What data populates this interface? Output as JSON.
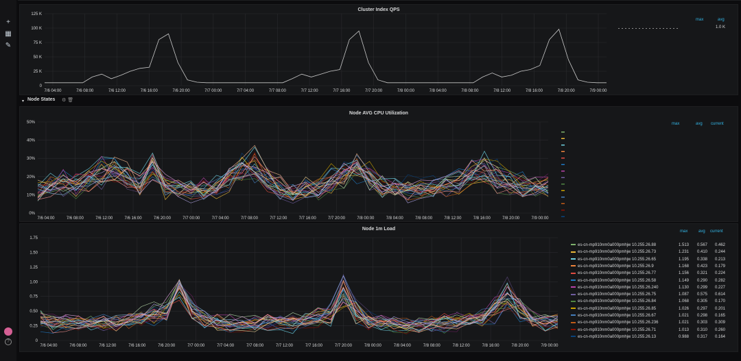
{
  "colors": {
    "background": "#0c0c0e",
    "panel": "#161719",
    "grid": "#2a2b2e",
    "axis_text": "#d8d9da",
    "legend_header": "#33b5e5",
    "qps_line": "#c8c8c8",
    "series_palette": [
      "#7eb26d",
      "#eab839",
      "#6ed0e0",
      "#ef843c",
      "#e24d42",
      "#1f78c1",
      "#ba43a9",
      "#705da0",
      "#508642",
      "#cca300",
      "#447ebc",
      "#c15c17",
      "#890f02",
      "#0a437c",
      "#6d1f62",
      "#584477",
      "#b7dbab",
      "#f4d598",
      "#70dbed",
      "#f9ba8f",
      "#f29191",
      "#82b5d8",
      "#e5a8e2",
      "#aea2e0"
    ]
  },
  "sidebar": {
    "icons": [
      "plus-icon",
      "dashboards-icon",
      "explore-icon",
      "user-avatar-icon",
      "help-icon"
    ],
    "help_label": "?"
  },
  "row": {
    "title": "Node States",
    "chevron": "▾",
    "icons": "⚙ 🗑"
  },
  "panels": {
    "qps": {
      "title": "Cluster Index QPS",
      "legend_headers": [
        "max",
        "avg"
      ],
      "legend_value": "1.0 K"
    },
    "cpu": {
      "title": "Node AVG CPU Utilization",
      "legend_headers": [
        "max",
        "avg",
        "current"
      ]
    },
    "load": {
      "title": "Node 1m Load",
      "legend_headers": [
        "max",
        "avg",
        "current"
      ],
      "legend_rows": [
        {
          "name": "es-cn-mp910nm0a000pmhjw 10.255.26.88",
          "max": "1.513",
          "avg": "0.567",
          "current": "0.462",
          "color": "#7eb26d"
        },
        {
          "name": "es-cn-mp910nm0a000pmhjw 10.255.26.73",
          "max": "1.231",
          "avg": "0.410",
          "current": "0.244",
          "color": "#eab839"
        },
        {
          "name": "es-cn-mp910nm0a000pmhjw 10.255.26.65",
          "max": "1.195",
          "avg": "0.338",
          "current": "0.213",
          "color": "#6ed0e0"
        },
        {
          "name": "es-cn-mp910nm0a000pmhjw 10.255.26.9",
          "max": "1.168",
          "avg": "0.423",
          "current": "0.179",
          "color": "#ef843c"
        },
        {
          "name": "es-cn-mp910nm0a000pmhjw 10.255.26.77",
          "max": "1.156",
          "avg": "0.321",
          "current": "0.224",
          "color": "#e24d42"
        },
        {
          "name": "es-cn-mp910nm0a000pmhjw 10.255.26.58",
          "max": "1.149",
          "avg": "0.290",
          "current": "0.282",
          "color": "#1f78c1"
        },
        {
          "name": "es-cn-mp910nm0a000pmhjw 10.255.26.240",
          "max": "1.130",
          "avg": "0.299",
          "current": "0.227",
          "color": "#ba43a9"
        },
        {
          "name": "es-cn-mp910nm0a000pmhjw 10.255.26.75",
          "max": "1.087",
          "avg": "0.575",
          "current": "0.614",
          "color": "#705da0"
        },
        {
          "name": "es-cn-mp910nm0a000pmhjw 10.255.26.84",
          "max": "1.068",
          "avg": "0.305",
          "current": "0.170",
          "color": "#508642"
        },
        {
          "name": "es-cn-mp910nm0a000pmhjw 10.255.26.85",
          "max": "1.026",
          "avg": "0.297",
          "current": "0.201",
          "color": "#cca300"
        },
        {
          "name": "es-cn-mp910nm0a000pmhjw 10.255.26.67",
          "max": "1.021",
          "avg": "0.298",
          "current": "0.165",
          "color": "#447ebc"
        },
        {
          "name": "es-cn-mp910nm0a000pmhjw 10.255.26.236",
          "max": "1.021",
          "avg": "0.303",
          "current": "0.309",
          "color": "#c15c17"
        },
        {
          "name": "es-cn-mp910nm0a000pmhjw 10.255.26.71",
          "max": "1.013",
          "avg": "0.310",
          "current": "0.260",
          "color": "#890f02"
        },
        {
          "name": "es-cn-mp910nm0a000pmhjw 10.255.26.13",
          "max": "0.988",
          "avg": "0.317",
          "current": "0.164",
          "color": "#0a437c"
        }
      ]
    }
  },
  "chart_data": [
    {
      "type": "line",
      "title": "Cluster Index QPS",
      "xlabel": "",
      "ylabel": "",
      "x_ticks": [
        "7/6 04:00",
        "7/6 08:00",
        "7/6 12:00",
        "7/6 16:00",
        "7/6 20:00",
        "7/7 00:00",
        "7/7 04:00",
        "7/7 08:00",
        "7/7 12:00",
        "7/7 16:00",
        "7/7 20:00",
        "7/8 00:00",
        "7/8 04:00",
        "7/8 08:00",
        "7/8 12:00",
        "7/8 16:00",
        "7/8 20:00",
        "7/9 00:00"
      ],
      "y_ticks": [
        "0",
        "25 K",
        "50 K",
        "75 K",
        "100 K",
        "125 K"
      ],
      "ylim": [
        0,
        125000
      ],
      "grid": true,
      "legend": "right",
      "series": [
        {
          "values": [
            5000,
            5000,
            5000,
            5000,
            5000,
            15000,
            20000,
            12000,
            18000,
            25000,
            30000,
            32000,
            80000,
            90000,
            40000,
            10000,
            6000,
            5000,
            5000,
            5000,
            5000,
            5000,
            5000,
            5000,
            5000,
            5000,
            12000,
            20000,
            15000,
            20000,
            25000,
            28000,
            80000,
            95000,
            40000,
            10000,
            5000,
            5000,
            5000,
            5000,
            5000,
            5000,
            5000,
            5000,
            5000,
            5000,
            15000,
            22000,
            15000,
            18000,
            25000,
            28000,
            35000,
            80000,
            98000,
            45000,
            10000,
            6000,
            5000,
            5000
          ]
        }
      ]
    },
    {
      "type": "line",
      "title": "Node AVG CPU Utilization",
      "xlabel": "",
      "ylabel": "",
      "x_ticks": [
        "7/6 04:00",
        "7/6 08:00",
        "7/6 12:00",
        "7/6 16:00",
        "7/6 20:00",
        "7/7 00:00",
        "7/7 04:00",
        "7/7 08:00",
        "7/7 12:00",
        "7/7 16:00",
        "7/7 20:00",
        "7/8 00:00",
        "7/8 04:00",
        "7/8 08:00",
        "7/8 12:00",
        "7/8 16:00",
        "7/8 20:00",
        "7/9 00:00"
      ],
      "y_ticks": [
        "0%",
        "10%",
        "20%",
        "30%",
        "40%",
        "50%"
      ],
      "ylim": [
        0,
        50
      ],
      "grid": true,
      "legend": "right",
      "series_count": 24,
      "base_profile": [
        12,
        14,
        16,
        15,
        18,
        22,
        24,
        20,
        16,
        25,
        14,
        13,
        12,
        13,
        14,
        20,
        24,
        26,
        18,
        14,
        12,
        13,
        14,
        18,
        22,
        25,
        20,
        15,
        14,
        13,
        12,
        14,
        16,
        18,
        22,
        24,
        20,
        16,
        15,
        14,
        14
      ]
    },
    {
      "type": "line",
      "title": "Node 1m Load",
      "xlabel": "",
      "ylabel": "",
      "x_ticks": [
        "7/6 04:00",
        "7/6 08:00",
        "7/6 12:00",
        "7/6 16:00",
        "7/6 20:00",
        "7/7 00:00",
        "7/7 04:00",
        "7/7 08:00",
        "7/7 12:00",
        "7/7 16:00",
        "7/7 20:00",
        "7/8 00:00",
        "7/8 04:00",
        "7/8 08:00",
        "7/8 12:00",
        "7/8 16:00",
        "7/8 20:00",
        "7/9 00:00"
      ],
      "y_ticks": [
        "0",
        "0.25",
        "0.50",
        "0.75",
        "1.00",
        "1.25",
        "1.50",
        "1.75"
      ],
      "ylim": [
        0,
        1.75
      ],
      "grid": true,
      "legend": "right",
      "series_count": 24,
      "base_profile": [
        0.35,
        0.32,
        0.3,
        0.3,
        0.28,
        0.3,
        0.32,
        0.35,
        0.4,
        0.45,
        0.5,
        0.9,
        0.55,
        0.35,
        0.3,
        0.28,
        0.25,
        0.25,
        0.28,
        0.3,
        0.3,
        0.32,
        0.4,
        0.45,
        0.85,
        0.5,
        0.35,
        0.3,
        0.28,
        0.25,
        0.25,
        0.28,
        0.3,
        0.32,
        0.35,
        0.4,
        0.5,
        0.8,
        0.55,
        0.35,
        0.3,
        0.3
      ]
    }
  ]
}
